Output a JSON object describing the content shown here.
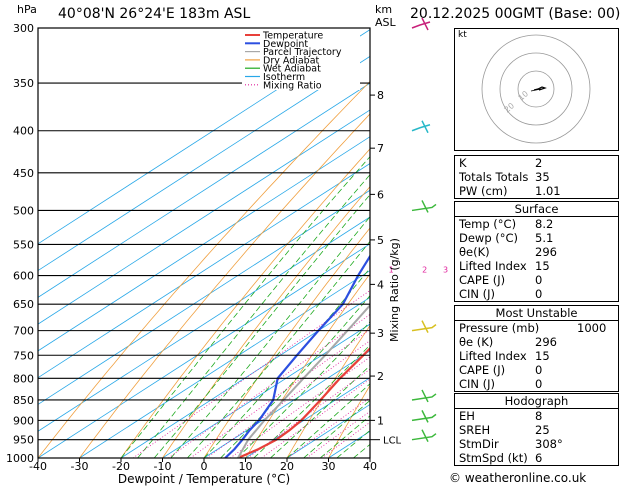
{
  "header": {
    "pressure_unit": "hPa",
    "location": "40°08'N  26°24'E  183m  ASL",
    "height_unit_top": "km",
    "height_unit_bottom": "ASL",
    "datetime": "20.12.2025  00GMT  (Base: 00)"
  },
  "colors": {
    "temperature": "#e8403a",
    "dewpoint": "#2c4fe0",
    "parcel": "#a8a8a8",
    "dry_adiabat": "#f0a040",
    "wet_adiabat": "#1faa1f",
    "isotherm": "#28a8e8",
    "mixing_ratio": "#e0209c"
  },
  "legend": [
    {
      "label": "Temperature",
      "key": "temperature",
      "style": "solid"
    },
    {
      "label": "Dewpoint",
      "key": "dewpoint",
      "style": "solid"
    },
    {
      "label": "Parcel Trajectory",
      "key": "parcel",
      "style": "solid"
    },
    {
      "label": "Dry Adiabat",
      "key": "dry_adiabat",
      "style": "solid"
    },
    {
      "label": "Wet Adiabat",
      "key": "wet_adiabat",
      "style": "solid"
    },
    {
      "label": "Isotherm",
      "key": "isotherm",
      "style": "solid"
    },
    {
      "label": "Mixing Ratio",
      "key": "mixing_ratio",
      "style": "dotted"
    }
  ],
  "chart_data": {
    "type": "line",
    "xlabel": "Dewpoint / Temperature (°C)",
    "ylabel_right": "Mixing Ratio (g/kg)",
    "xlim": [
      -40,
      40
    ],
    "pressure_ticks": [
      300,
      350,
      400,
      450,
      500,
      550,
      600,
      650,
      700,
      750,
      800,
      850,
      900,
      950,
      1000
    ],
    "x_ticks": [
      "-40",
      "-30",
      "-20",
      "-10",
      "0",
      "10",
      "20",
      "30",
      "40"
    ],
    "km_ticks": [
      {
        "km": "8",
        "p": 362
      },
      {
        "km": "7",
        "p": 420
      },
      {
        "km": "6",
        "p": 478
      },
      {
        "km": "5",
        "p": 543
      },
      {
        "km": "4",
        "p": 615
      },
      {
        "km": "3",
        "p": 705
      },
      {
        "km": "2",
        "p": 795
      },
      {
        "km": "1",
        "p": 900
      }
    ],
    "lcl": {
      "label": "LCL",
      "p": 950
    },
    "mixing_ratio_labels": [
      "1",
      "2",
      "3",
      "4",
      "6",
      "8",
      "10",
      "15",
      "20",
      "25"
    ],
    "mixing_ratio_values": [
      1,
      2,
      3,
      4,
      6,
      8,
      10,
      15,
      20,
      25
    ],
    "series": [
      {
        "key": "temperature",
        "p": [
          1000,
          975,
          950,
          925,
          900,
          850,
          800,
          750,
          700,
          650,
          600,
          550,
          500,
          450,
          400,
          350,
          300
        ],
        "t": [
          8.2,
          9.8,
          10.6,
          10.2,
          9.4,
          6.4,
          3.0,
          0.0,
          -3.4,
          -7.4,
          -11.4,
          -16.0,
          -21.0,
          -27.0,
          -34.0,
          -41.5,
          -49.5
        ]
      },
      {
        "key": "dewpoint",
        "p": [
          1000,
          975,
          950,
          925,
          900,
          850,
          800,
          750,
          700,
          650,
          600,
          550,
          500,
          450,
          400,
          350,
          300
        ],
        "t": [
          5.1,
          4.0,
          2.4,
          0.6,
          -0.8,
          -5.0,
          -12.0,
          -16.0,
          -20.0,
          -24.0,
          -31.0,
          -38.0,
          -45.5,
          -39.0,
          -33.5,
          -39.0,
          -46.5
        ]
      },
      {
        "key": "parcel",
        "p": [
          1000,
          950,
          900,
          850,
          800,
          750,
          700,
          650,
          600,
          550,
          500,
          450,
          400,
          350,
          300
        ],
        "t": [
          8.2,
          3.8,
          0.5,
          -2.5,
          -5.8,
          -9.2,
          -13.0,
          -17.2,
          -21.8,
          -27.0,
          -33.0,
          -40.0,
          -47.5,
          -55.5,
          -63.5
        ]
      }
    ]
  },
  "hodograph": {
    "label": "kt",
    "ring_labels": [
      "10",
      "20"
    ]
  },
  "indices": {
    "rows": [
      {
        "label": "K",
        "value": "2"
      },
      {
        "label": "Totals Totals",
        "value": "35"
      },
      {
        "label": "PW (cm)",
        "value": "1.01"
      }
    ]
  },
  "surface": {
    "title": "Surface",
    "rows": [
      {
        "label": "Temp (°C)",
        "value": "8.2"
      },
      {
        "label": "Dewp (°C)",
        "value": "5.1"
      },
      {
        "label": "θe(K)",
        "value": "296"
      },
      {
        "label": "Lifted Index",
        "value": "15"
      },
      {
        "label": "CAPE (J)",
        "value": "0"
      },
      {
        "label": "CIN (J)",
        "value": "0"
      }
    ]
  },
  "most_unstable": {
    "title": "Most Unstable",
    "rows": [
      {
        "label": "Pressure (mb)",
        "value": "1000"
      },
      {
        "label": "θe (K)",
        "value": "296"
      },
      {
        "label": "Lifted Index",
        "value": "15"
      },
      {
        "label": "CAPE (J)",
        "value": "0"
      },
      {
        "label": "CIN (J)",
        "value": "0"
      }
    ]
  },
  "hodograph_table": {
    "title": "Hodograph",
    "rows": [
      {
        "label": "EH",
        "value": "8"
      },
      {
        "label": "SREH",
        "value": "25"
      },
      {
        "label": "StmDir",
        "value": "308°"
      },
      {
        "label": "StmSpd (kt)",
        "value": "6"
      }
    ]
  },
  "credit": "© weatheronline.co.uk"
}
